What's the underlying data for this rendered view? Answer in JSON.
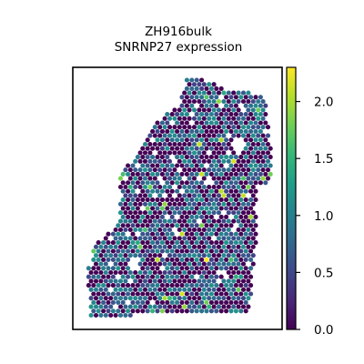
{
  "chart_data": {
    "type": "scatter",
    "subtype": "spatial-hexbin",
    "title_lines": [
      "ZH916bulk",
      "SNRNP27 expression"
    ],
    "xlabel": "",
    "ylabel": "",
    "frame_ticks": false,
    "colormap": "viridis",
    "colormap_stops": [
      "#440154",
      "#482878",
      "#3e4989",
      "#31688e",
      "#26828e",
      "#1f9e89",
      "#35b779",
      "#6ece58",
      "#b5de2b",
      "#fde725"
    ],
    "colorbar": {
      "range": [
        0.0,
        2.3
      ],
      "ticks": [
        0.0,
        0.5,
        1.0,
        1.5,
        2.0
      ],
      "tick_labels": [
        "0.0",
        "0.5",
        "1.0",
        "1.5",
        "2.0"
      ],
      "placement": "right"
    },
    "spot_grid": "hexagonal",
    "spot_count_approx": 2000,
    "expression_distribution": {
      "zero_fraction": 0.45,
      "typical_nonzero_range": [
        0.4,
        1.2
      ],
      "max": 2.3
    }
  }
}
